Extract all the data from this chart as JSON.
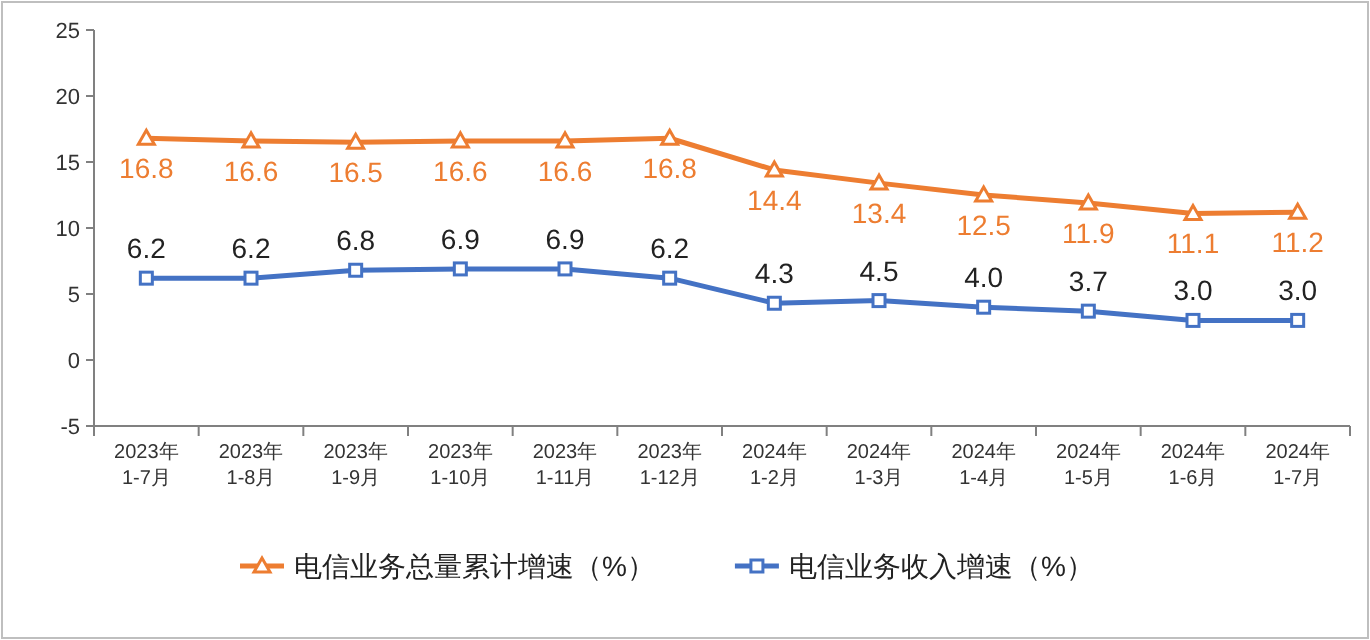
{
  "chart_data": {
    "type": "line",
    "categories": [
      "2023年\n1-7月",
      "2023年\n1-8月",
      "2023年\n1-9月",
      "2023年\n1-10月",
      "2023年\n1-11月",
      "2023年\n1-12月",
      "2024年\n1-2月",
      "2024年\n1-3月",
      "2024年\n1-4月",
      "2024年\n1-5月",
      "2024年\n1-6月",
      "2024年\n1-7月"
    ],
    "series": [
      {
        "name": "电信业务总量累计增速（%）",
        "color": "#ed7d31",
        "marker": "triangle",
        "values": [
          16.8,
          16.6,
          16.5,
          16.6,
          16.6,
          16.8,
          14.4,
          13.4,
          12.5,
          11.9,
          11.1,
          11.2
        ],
        "value_labels": [
          "16.8",
          "16.6",
          "16.5",
          "16.6",
          "16.6",
          "16.8",
          "14.4",
          "13.4",
          "12.5",
          "11.9",
          "11.1",
          "11.2"
        ]
      },
      {
        "name": "电信业务收入增速（%）",
        "color": "#4472c4",
        "marker": "square",
        "values": [
          6.2,
          6.2,
          6.8,
          6.9,
          6.9,
          6.2,
          4.3,
          4.5,
          4.0,
          3.7,
          3.0,
          3.0
        ],
        "value_labels": [
          "6.2",
          "6.2",
          "6.8",
          "6.9",
          "6.9",
          "6.2",
          "4.3",
          "4.5",
          "4.0",
          "3.7",
          "3.0",
          "3.0"
        ]
      }
    ],
    "ylim": [
      -5,
      25
    ],
    "yticks": [
      -5,
      0,
      5,
      10,
      15,
      20,
      25
    ],
    "legend": "bottom",
    "grid": false,
    "line_style": "solid"
  }
}
